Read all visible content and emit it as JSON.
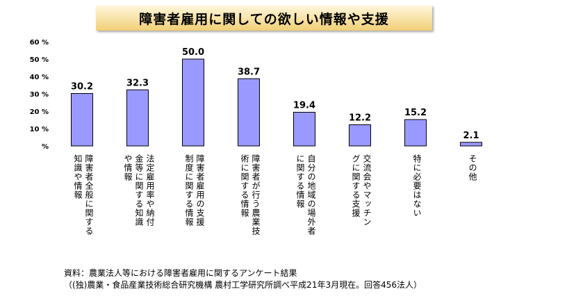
{
  "chart_data": {
    "type": "bar",
    "title": "障害者雇用に関しての欲しい情報や支援",
    "ylim": [
      0,
      60
    ],
    "yticks": [
      0,
      10,
      20,
      30,
      40,
      50,
      60
    ],
    "ytick_labels": [
      "%",
      "10 %",
      "20 %",
      "30 %",
      "40 %",
      "50 %",
      "60 %"
    ],
    "grid": false,
    "bar_color": "#9999ff",
    "categories": [
      "障害者全般に関する\n知識や情報",
      "法定雇用率や納付\n金等に関する知識\nや情報",
      "障害者雇用の支援\n制度に関する情報",
      "障害者が行う農業技\n術に関する情報",
      "自分の地域の場外者\nに関する情報",
      "交流会やマッチン\nグに関する支援",
      "特に必要はない",
      "その他"
    ],
    "values": [
      30.2,
      32.3,
      50.0,
      38.7,
      19.4,
      12.2,
      15.2,
      2.1
    ],
    "value_labels": [
      "30.2",
      "32.3",
      "50.0",
      "38.7",
      "19.4",
      "12.2",
      "15.2",
      "2.1"
    ]
  },
  "source": {
    "line1": "資料：農業法人等における障害者雇用に関するアンケート結果",
    "line2": "（(独)農業・食品産業技術総合研究機構 農村工学研究所調べ平成21年3月現在。回答456法人）"
  }
}
